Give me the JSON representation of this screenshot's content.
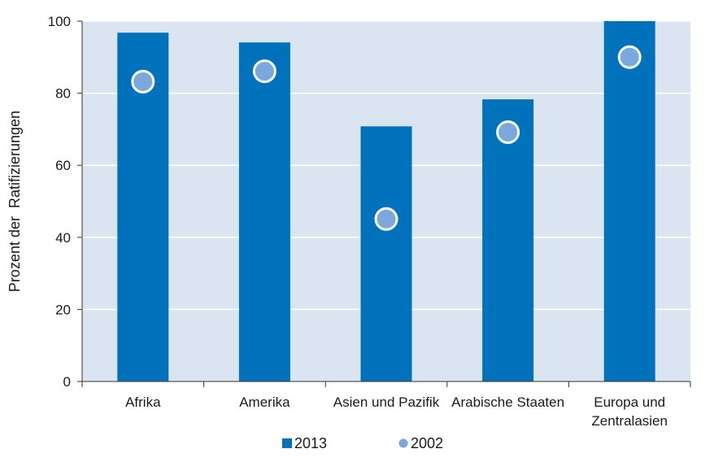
{
  "colors": {
    "plot_background": "#dbe4f1",
    "gridline": "#ffffff",
    "bar_2013": "#0072bc",
    "marker_2002": "#7aa7dc",
    "marker_outline": "#ffffff",
    "axis": "#333333"
  },
  "chart_data": {
    "type": "bar",
    "categories": [
      [
        "Afrika"
      ],
      [
        "Amerika"
      ],
      [
        "Asien und Pazifik"
      ],
      [
        "Arabische Staaten"
      ],
      [
        "Europa und",
        "Zentralasien"
      ]
    ],
    "series": [
      {
        "name": "2013",
        "kind": "bar",
        "values": [
          96.8,
          94.1,
          70.8,
          78.3,
          100
        ]
      },
      {
        "name": "2002",
        "kind": "marker",
        "values": [
          83.2,
          86.1,
          45.1,
          69.2,
          90.0
        ]
      }
    ],
    "xlabel": "",
    "ylabel": "Prozent der  Ratifizierungen",
    "ylim": [
      0,
      100
    ],
    "yticks": [
      0,
      20,
      40,
      60,
      80,
      100
    ],
    "grid": true,
    "legend_position": "bottom-center"
  }
}
